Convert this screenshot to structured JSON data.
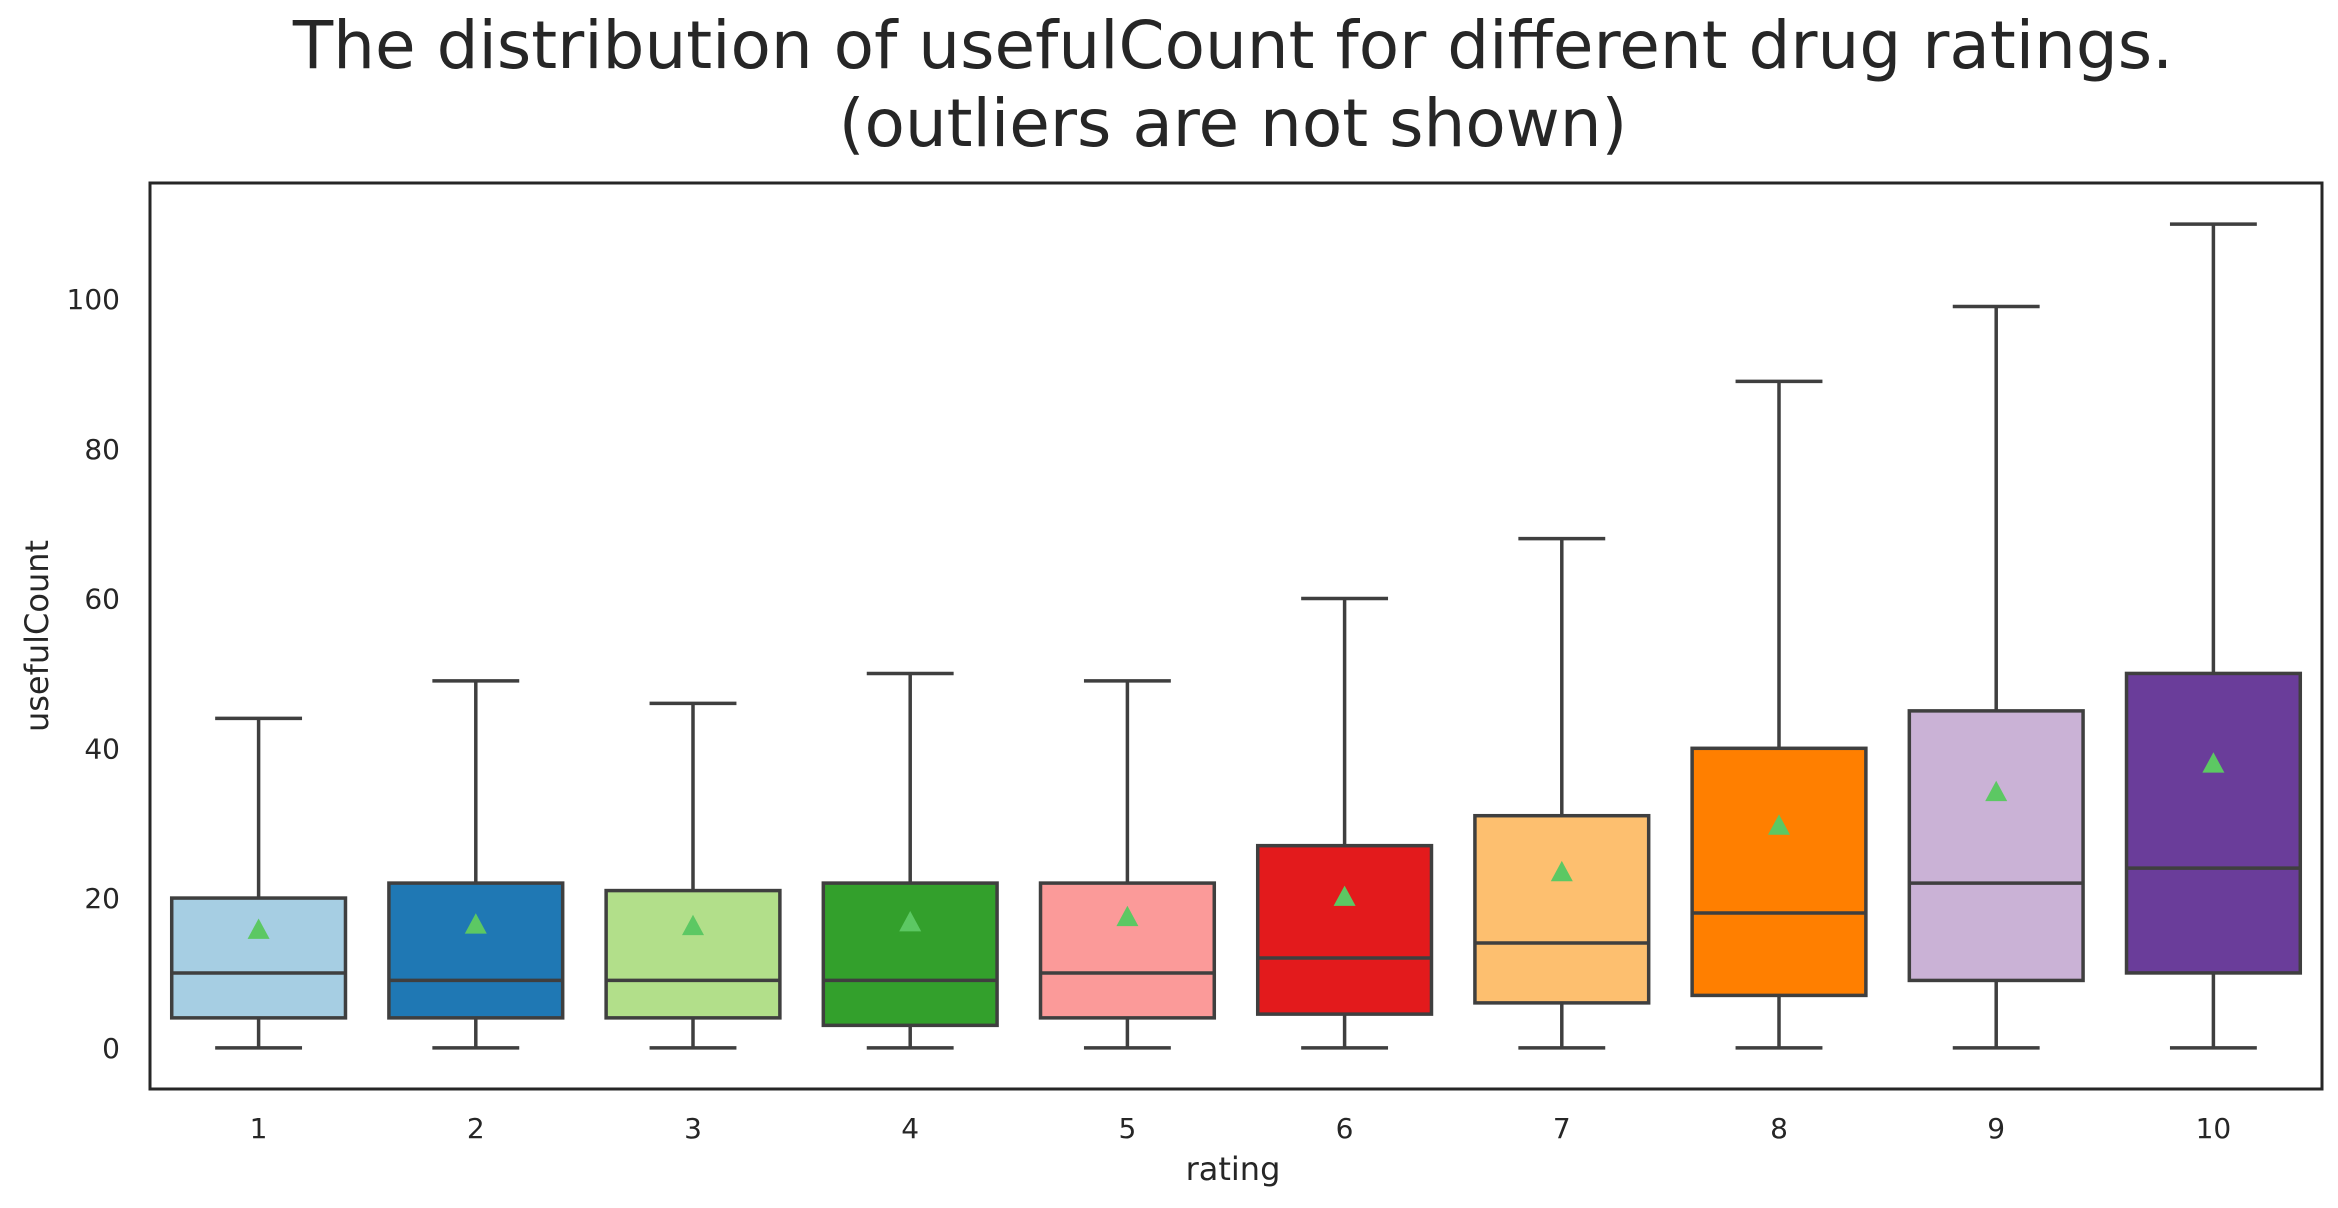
{
  "chart_data": {
    "type": "box",
    "title_line1": "The distribution of usefulCount for different drug ratings.",
    "title_line2": "(outliers are not shown)",
    "xlabel": "rating",
    "ylabel": "usefulCount",
    "ylim": [
      -5.5,
      115.5
    ],
    "yticks": [
      0,
      20,
      40,
      60,
      80,
      100
    ],
    "grid": false,
    "mean_marker_color": "#5cc863",
    "edge_color": "#3f3f3f",
    "categories": [
      "1",
      "2",
      "3",
      "4",
      "5",
      "6",
      "7",
      "8",
      "9",
      "10"
    ],
    "boxes": [
      {
        "rating": "1",
        "whislo": 0,
        "q1": 4,
        "med": 10,
        "q3": 20,
        "whishi": 44,
        "mean": 15.8,
        "color": "#a6cee3"
      },
      {
        "rating": "2",
        "whislo": 0,
        "q1": 4,
        "med": 9,
        "q3": 22,
        "whishi": 49,
        "mean": 16.5,
        "color": "#1f78b4"
      },
      {
        "rating": "3",
        "whislo": 0,
        "q1": 4,
        "med": 9,
        "q3": 21,
        "whishi": 46,
        "mean": 16.3,
        "color": "#b2df8a"
      },
      {
        "rating": "4",
        "whislo": 0,
        "q1": 3,
        "med": 9,
        "q3": 22,
        "whishi": 50,
        "mean": 16.8,
        "color": "#33a02c"
      },
      {
        "rating": "5",
        "whislo": 0,
        "q1": 4,
        "med": 10,
        "q3": 22,
        "whishi": 49,
        "mean": 17.5,
        "color": "#fb9a99"
      },
      {
        "rating": "6",
        "whislo": 0,
        "q1": 4.5,
        "med": 12,
        "q3": 27,
        "whishi": 60,
        "mean": 20.2,
        "color": "#e31a1c"
      },
      {
        "rating": "7",
        "whislo": 0,
        "q1": 6,
        "med": 14,
        "q3": 31,
        "whishi": 68,
        "mean": 23.5,
        "color": "#fdbf6f"
      },
      {
        "rating": "8",
        "whislo": 0,
        "q1": 7,
        "med": 18,
        "q3": 40,
        "whishi": 89,
        "mean": 29.7,
        "color": "#ff7f00"
      },
      {
        "rating": "9",
        "whislo": 0,
        "q1": 9,
        "med": 22,
        "q3": 45,
        "whishi": 99,
        "mean": 34.2,
        "color": "#cab2d6"
      },
      {
        "rating": "10",
        "whislo": 0,
        "q1": 10,
        "med": 24,
        "q3": 50,
        "whishi": 110,
        "mean": 38.0,
        "color": "#6a3d9a"
      }
    ]
  }
}
